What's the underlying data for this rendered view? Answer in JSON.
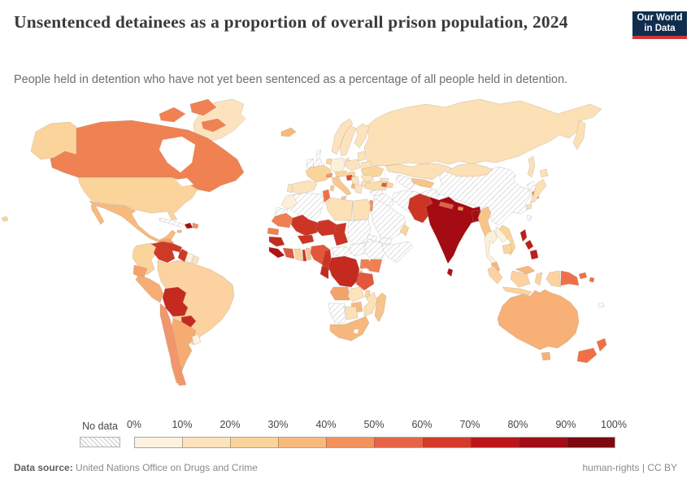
{
  "header": {
    "title": "Unsentenced detainees as a proportion of overall prison population, 2024",
    "subtitle": "People held in detention who have not yet been sentenced as a percentage of all people held in detention."
  },
  "logo": {
    "line1": "Our World",
    "line2": "in Data",
    "bg": "#102d4f",
    "accent": "#cf3637"
  },
  "legend": {
    "no_data_label": "No data",
    "tick_labels": [
      "0%",
      "10%",
      "20%",
      "30%",
      "40%",
      "50%",
      "60%",
      "70%",
      "80%",
      "90%",
      "100%"
    ],
    "bucket_colors": [
      "#fdf2e0",
      "#fce3bd",
      "#fbd49c",
      "#f8b97d",
      "#f3915c",
      "#e66549",
      "#d33b2a",
      "#bb161b",
      "#a00d16",
      "#7c0a10"
    ]
  },
  "footer": {
    "source_label": "Data source:",
    "source_text": " United Nations Office on Drugs and Crime",
    "rights": "human-rights",
    "separator": " | ",
    "license": "CC BY"
  },
  "map": {
    "colors": {
      "canada": "#f08152",
      "usa": "#fbd49c",
      "greenland": "#fce3bd",
      "mexico": "#f8b97d",
      "guatemala": "#f3a36c",
      "panama_strip": "#ef8050",
      "haiti": "#a50e16",
      "dominican": "#f3915c",
      "jamaica": "#f8b97d",
      "colombia": "#fbd49c",
      "venezuela": "#cf3a28",
      "guyana": "#cf3a28",
      "suriname": "#fdf2e0",
      "french_guiana": "#fce3bd",
      "ecuador": "#f3a36c",
      "peru": "#f5ad74",
      "brazil": "#fbd2a0",
      "bolivia": "#c52a20",
      "paraguay": "#c52a20",
      "chile": "#f2966b",
      "argentina": "#f5ab72",
      "uruguay": "#fdf2e0",
      "iceland": "#f8b97d",
      "norway": "#fce3bd",
      "sweden": "#fce3bd",
      "finland": "#fce3bd",
      "denmark": "#fce3bd",
      "germany": "#fdf0da",
      "france": "#fbd49c",
      "spain": "#fce3bd",
      "portugal": "#fce3bd",
      "benelux": "#fbd49c",
      "switzerland": "#f2966b",
      "italy": "#f9c890",
      "austria_czechia": "#fbd49c",
      "croatia": "#dd4b37",
      "hungary": "#fbd49c",
      "poland": "#fce3bd",
      "belarus": "#fce3bd",
      "baltics": "#fce3bd",
      "ukraine": "#fbd49c",
      "romania": "#fce3bd",
      "serbia": "#fce3bd",
      "bulgaria": "#fce3bd",
      "greece": "#fce3bd",
      "albania": "#f8b97d",
      "turkey": "#fbdcae",
      "russia": "#fce0b6",
      "georgia": "#fce3bd",
      "armenia": "#e05a43",
      "azerbaijan": "#fbd49c",
      "kazakhstan": "#fce0b6",
      "uzbekistan": "#f8c48c",
      "kyrgyzstan": "#fce3bd",
      "tajikistan": "#f8ba80",
      "oman": "#fbd49c",
      "israel": "#f3915c",
      "mongolia": "#fce0b6",
      "south_korea": "#f09059",
      "japan": "#fce0b6",
      "india": "#a50b13",
      "pakistan": "#cc3526",
      "nepal": "#e0604a",
      "bhutan": "#f3915c",
      "bangladesh": "#a50d15",
      "sri_lanka": "#b01017",
      "myanmar": "#f8c48c",
      "thailand": "#fdf0da",
      "laos": "#fdf2e0",
      "vietnam": "#fbd49c",
      "cambodia": "#fbd49c",
      "malaysia": "#f6b87c",
      "indonesia": "#fbd2a0",
      "philippines": "#bf1c1c",
      "png": "#ef7048",
      "timor": "#fbd2a0",
      "australia": "#f7b076",
      "new_zealand": "#ef7048",
      "morocco": "#fdf0da",
      "tunisia": "#ef7048",
      "libya": "#fce0b6",
      "egypt": "#fce0b6",
      "mauritania": "#f08052",
      "senegal": "#f08052",
      "mali": "#cc3526",
      "burkina": "#cc3526",
      "niger": "#cc3526",
      "chad": "#cc3526",
      "guinea": "#c52a20",
      "sl_liberia": "#b01017",
      "ivory_coast": "#e2573e",
      "ghana": "#fbd49c",
      "togo": "#cc3526",
      "benin": "#f8c48c",
      "nigeria": "#e2573e",
      "cameroon": "#cc3526",
      "kenya": "#f08052",
      "uganda": "#f08052",
      "rwanda": "#f8b97d",
      "drc": "#c52a20",
      "congo_gabon": "#c52a20",
      "tanzania": "#e2573e",
      "angola": "#f3a36c",
      "zambia": "#fce3bd",
      "malawi": "#fbd49c",
      "mozambique": "#fce0b6",
      "zimbabwe": "#f8ba80",
      "botswana": "#fce0b6",
      "south_africa": "#f6b87c",
      "madagascar": "#f8c48c"
    }
  },
  "chart_data": {
    "type": "heatmap",
    "subtype": "choropleth-world-map",
    "title": "Unsentenced detainees as a proportion of overall prison population, 2024",
    "unit": "% of all people held in detention",
    "year": 2024,
    "legend_bins": [
      "0-10%",
      "10-20%",
      "20-30%",
      "30-40%",
      "40-50%",
      "50-60%",
      "60-70%",
      "70-80%",
      "80-90%",
      "90-100%"
    ],
    "bin_colors": [
      "#fdf2e0",
      "#fce3bd",
      "#fbd49c",
      "#f8b97d",
      "#f3915c",
      "#e66549",
      "#d33b2a",
      "#bb161b",
      "#a00d16",
      "#7c0a10"
    ],
    "no_data_style": "gray diagonal hatching",
    "values": {
      "Canada": "40-50%",
      "United States": "20-30%",
      "Greenland": "10-20%",
      "Mexico": "30-40%",
      "Guatemala-Honduras": "30-40%",
      "Nicaragua-Costa Rica-Panama": "40-50%",
      "Cuba": "No data",
      "Haiti": "80-90%",
      "Dominican Republic": "40-50%",
      "Jamaica": "30-40%",
      "Colombia": "20-30%",
      "Venezuela": "60-70%",
      "Guyana": "60-70%",
      "Suriname": "0-10%",
      "French Guiana": "10-20%",
      "Ecuador": "30-40%",
      "Peru": "30-40%",
      "Brazil": "20-30%",
      "Bolivia": "60-70%",
      "Paraguay": "60-70%",
      "Chile": "40-50%",
      "Argentina": "30-40%",
      "Uruguay": "0-10%",
      "Iceland": "30-40%",
      "United Kingdom": "No data",
      "Ireland": "No data",
      "Norway": "10-20%",
      "Sweden": "10-20%",
      "Finland": "10-20%",
      "Denmark": "10-20%",
      "Germany": "0-10%",
      "France": "20-30%",
      "Spain": "10-20%",
      "Portugal": "10-20%",
      "Netherlands-Belgium": "20-30%",
      "Switzerland": "40-50%",
      "Italy": "20-30%",
      "Austria-Czechia": "20-30%",
      "Croatia": "50-60%",
      "Hungary": "20-30%",
      "Poland": "10-20%",
      "Belarus": "10-20%",
      "Baltic states": "10-20%",
      "Ukraine": "20-30%",
      "Romania": "10-20%",
      "Serbia": "10-20%",
      "Bulgaria": "10-20%",
      "Greece": "10-20%",
      "Albania": "30-40%",
      "Turkey": "10-20%",
      "Russia": "10-20%",
      "Georgia": "10-20%",
      "Armenia": "50-60%",
      "Azerbaijan": "20-30%",
      "Kazakhstan": "10-20%",
      "Uzbekistan": "20-30%",
      "Kyrgyzstan": "10-20%",
      "Tajikistan": "30-40%",
      "Turkmenistan": "No data",
      "Iran": "No data",
      "Iraq": "No data",
      "Syria": "No data",
      "Saudi Arabia": "No data",
      "Yemen": "No data",
      "Oman": "20-30%",
      "Israel": "40-50%",
      "Afghanistan": "No data",
      "China": "No data",
      "Mongolia": "10-20%",
      "North Korea": "No data",
      "South Korea": "40-50%",
      "Japan": "10-20%",
      "Taiwan": "No data",
      "India": "80-90%",
      "Pakistan": "60-70%",
      "Nepal": "50-60%",
      "Bhutan": "40-50%",
      "Bangladesh": "80-90%",
      "Sri Lanka": "70-80%",
      "Myanmar": "20-30%",
      "Thailand": "0-10%",
      "Laos": "0-10%",
      "Vietnam": "20-30%",
      "Cambodia": "20-30%",
      "Malaysia": "30-40%",
      "Indonesia": "20-30%",
      "Philippines": "70-80%",
      "Papua New Guinea": "40-50%",
      "Timor": "20-30%",
      "Australia": "30-40%",
      "New Zealand": "40-50%",
      "Morocco": "0-10%",
      "Western Sahara": "No data",
      "Algeria": "No data",
      "Tunisia": "40-50%",
      "Libya": "10-20%",
      "Egypt": "10-20%",
      "Mauritania": "40-50%",
      "Senegal": "40-50%",
      "Mali": "60-70%",
      "Burkina Faso": "60-70%",
      "Niger": "60-70%",
      "Chad": "60-70%",
      "Sudan": "No data",
      "Eritrea": "No data",
      "Guinea": "60-70%",
      "Sierra Leone-Liberia": "70-80%",
      "Ivory Coast": "50-60%",
      "Ghana": "20-30%",
      "Togo": "60-70%",
      "Benin": "20-30%",
      "Nigeria": "50-60%",
      "Cameroon": "60-70%",
      "Central African Republic": "No data",
      "South Sudan": "No data",
      "Ethiopia": "No data",
      "Somalia": "No data",
      "Kenya": "40-50%",
      "Uganda": "40-50%",
      "Rwanda-Burundi": "30-40%",
      "Democratic Republic of Congo": "60-70%",
      "Congo-Gabon": "60-70%",
      "Tanzania": "50-60%",
      "Angola": "30-40%",
      "Zambia": "10-20%",
      "Malawi": "20-30%",
      "Mozambique": "10-20%",
      "Zimbabwe": "30-40%",
      "Namibia": "No data",
      "Botswana": "10-20%",
      "South Africa": "30-40%",
      "Madagascar": "20-30%"
    }
  }
}
